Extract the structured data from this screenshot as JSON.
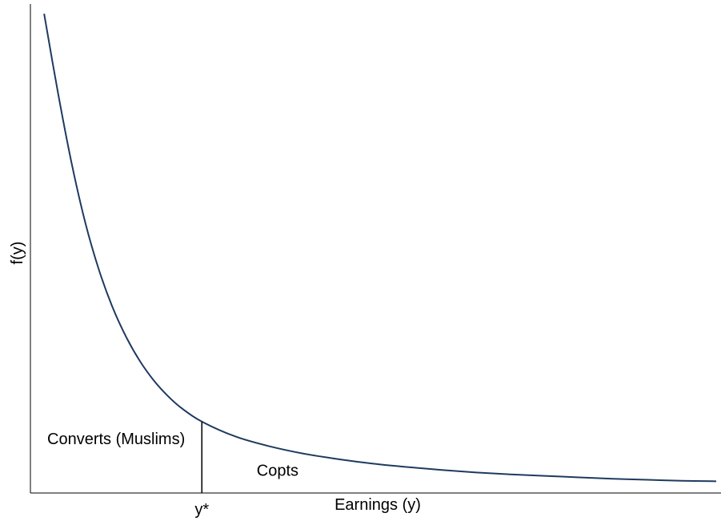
{
  "chart_data": {
    "type": "line",
    "xlabel": "Earnings (y)",
    "ylabel": "f(y)",
    "xticks": [
      {
        "value": 0.25,
        "label": "y*"
      }
    ],
    "xlim": [
      0,
      1
    ],
    "ylim": [
      0,
      1
    ],
    "grid": false,
    "legend": "none",
    "series": [
      {
        "color": "#1f3a5f",
        "x": [
          0.02,
          0.04,
          0.06,
          0.08,
          0.1,
          0.12,
          0.14,
          0.16,
          0.18,
          0.2,
          0.22,
          0.25,
          0.3,
          0.35,
          0.4,
          0.45,
          0.5,
          0.55,
          0.6,
          0.65,
          0.7,
          0.75,
          0.8,
          0.85,
          0.9,
          0.95,
          1.0
        ],
        "y": [
          0.98,
          0.82,
          0.675,
          0.553,
          0.456,
          0.379,
          0.318,
          0.269,
          0.23,
          0.199,
          0.174,
          0.146,
          0.115,
          0.095,
          0.08,
          0.069,
          0.06,
          0.053,
          0.047,
          0.042,
          0.038,
          0.035,
          0.032,
          0.029,
          0.027,
          0.025,
          0.024
        ]
      }
    ],
    "cutoff": {
      "x": 0.25
    },
    "annotations": [
      {
        "text": "Converts (Muslims)",
        "x": 0.125,
        "y": 0.1
      },
      {
        "text": "Copts",
        "x": 0.33,
        "y": 0.035
      }
    ]
  }
}
